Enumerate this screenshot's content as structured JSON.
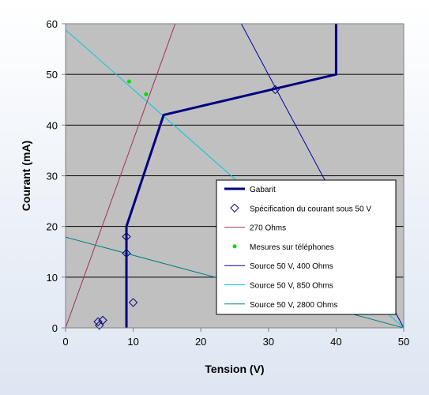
{
  "chart_data": {
    "type": "line",
    "xlabel": "Tension (V)",
    "ylabel": "Courant (mA)",
    "xlim": [
      0,
      50
    ],
    "ylim": [
      0,
      60
    ],
    "xticks": [
      0,
      10,
      20,
      30,
      40,
      50
    ],
    "yticks": [
      0,
      10,
      20,
      30,
      40,
      50,
      60
    ],
    "grid": "horizontal",
    "legend_position": "bottom-right",
    "colors": {
      "plot_background": "#c0c0c0",
      "gridline": "#000000"
    },
    "series": [
      {
        "name": "Gabarit",
        "kind": "line",
        "color": "#000080",
        "x": [
          9,
          9,
          14.5,
          40,
          40
        ],
        "y": [
          0,
          20,
          42,
          50,
          60
        ]
      },
      {
        "name": "Spécification du courant sous 50 V",
        "kind": "marker-diamond",
        "color": "#000080",
        "x": [
          5,
          5.5,
          4.8,
          9,
          9,
          10,
          31
        ],
        "y": [
          0.5,
          1.5,
          1.2,
          18,
          14.7,
          5,
          47
        ]
      },
      {
        "name": "270 Ohms",
        "kind": "line",
        "color": "#a0305a",
        "x": [
          0,
          16.4
        ],
        "y": [
          0,
          60.7
        ]
      },
      {
        "name": "Mesures sur téléphones",
        "kind": "marker-dot",
        "color": "#00e000",
        "x": [
          9.4,
          11.9
        ],
        "y": [
          48.6,
          46.1
        ]
      },
      {
        "name": "Source 50 V, 400 Ohms",
        "kind": "line",
        "color": "#0000a0",
        "x": [
          25.5,
          50
        ],
        "y": [
          61.2,
          0
        ]
      },
      {
        "name": "Source 50 V, 850 Ohms",
        "kind": "line",
        "color": "#00c8e0",
        "x": [
          0,
          50
        ],
        "y": [
          58.8,
          0
        ]
      },
      {
        "name": "Source 50 V, 2800 Ohms",
        "kind": "line",
        "color": "#008080",
        "x": [
          0,
          50
        ],
        "y": [
          17.9,
          0
        ]
      }
    ]
  }
}
